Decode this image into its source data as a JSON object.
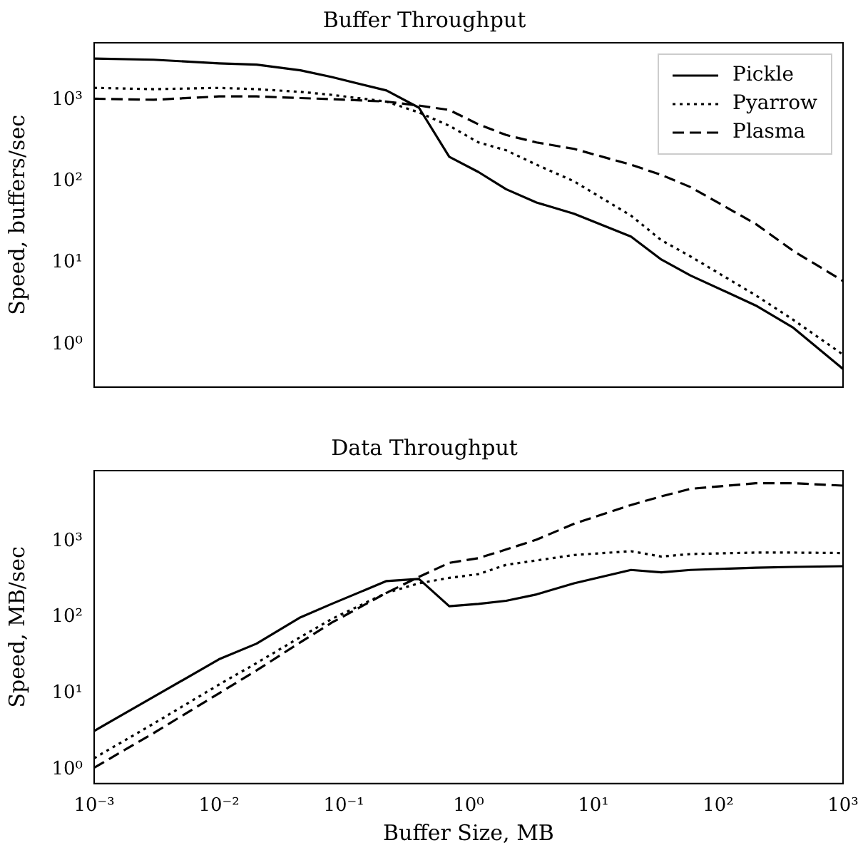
{
  "chart_data": [
    {
      "type": "line",
      "title": "Buffer Throughput",
      "ylabel": "Speed, buffers/sec",
      "log": "xy",
      "legend": "top right",
      "tick_labels": "y",
      "grid": false,
      "x": [
        0.001,
        0.003,
        0.01,
        0.02,
        0.045,
        0.08,
        0.22,
        0.4,
        0.7,
        1.2,
        2,
        3.5,
        7,
        20,
        35,
        60,
        200,
        400,
        1000
      ],
      "xlim": [
        0.001,
        1000
      ],
      "xticks": [
        {
          "value": 0.001,
          "label": null
        },
        {
          "value": 0.01,
          "label": null
        },
        {
          "value": 0.1,
          "label": null
        },
        {
          "value": 1,
          "label": null
        },
        {
          "value": 10,
          "label": null
        },
        {
          "value": 100,
          "label": null
        },
        {
          "value": 1000,
          "label": null
        }
      ],
      "ylim": [
        0.3,
        5000
      ],
      "yticks": [
        {
          "value": 1,
          "label": "10⁰"
        },
        {
          "value": 10,
          "label": "10¹"
        },
        {
          "value": 100,
          "label": "10²"
        },
        {
          "value": 1000,
          "label": "10³"
        }
      ],
      "series": [
        {
          "name": "Pickle",
          "color": "#000000",
          "line_style": "solid",
          "values": [
            3200,
            3100,
            2800,
            2700,
            2300,
            1900,
            1300,
            800,
            200,
            130,
            80,
            55,
            40,
            21,
            11,
            7,
            3,
            1.6,
            0.5
          ]
        },
        {
          "name": "Pyarrow",
          "color": "#000000",
          "line_style": "dotted",
          "values": [
            1400,
            1350,
            1400,
            1350,
            1250,
            1150,
            950,
            700,
            480,
            300,
            240,
            160,
            100,
            38,
            19,
            12,
            4,
            2,
            0.75
          ]
        },
        {
          "name": "Plasma",
          "color": "#000000",
          "line_style": "dashed",
          "values": [
            1030,
            1000,
            1100,
            1100,
            1050,
            1020,
            950,
            850,
            750,
            500,
            370,
            300,
            250,
            160,
            120,
            85,
            30,
            14,
            6
          ]
        }
      ]
    },
    {
      "type": "line",
      "title": "Data Throughput",
      "xlabel": "Buffer Size, MB",
      "ylabel": "Speed, MB/sec",
      "log": "xy",
      "grid": false,
      "x": [
        0.001,
        0.003,
        0.01,
        0.02,
        0.045,
        0.08,
        0.22,
        0.4,
        0.7,
        1.2,
        2,
        3.5,
        7,
        20,
        35,
        60,
        200,
        400,
        1000
      ],
      "xlim": [
        0.001,
        1000
      ],
      "xticks": [
        {
          "value": 0.001,
          "label": "10⁻³"
        },
        {
          "value": 0.01,
          "label": "10⁻²"
        },
        {
          "value": 0.1,
          "label": "10⁻¹"
        },
        {
          "value": 1,
          "label": "10⁰"
        },
        {
          "value": 10,
          "label": "10¹"
        },
        {
          "value": 100,
          "label": "10²"
        },
        {
          "value": 1000,
          "label": "10³"
        }
      ],
      "ylim": [
        0.65,
        8500
      ],
      "yticks": [
        {
          "value": 1,
          "label": "10⁰"
        },
        {
          "value": 10,
          "label": "10¹"
        },
        {
          "value": 100,
          "label": "10²"
        },
        {
          "value": 1000,
          "label": "10³"
        }
      ],
      "series": [
        {
          "color": "#000000",
          "line_style": "solid",
          "values": [
            3.2,
            9,
            28,
            45,
            100,
            150,
            300,
            320,
            140,
            150,
            165,
            200,
            280,
            420,
            390,
            420,
            450,
            460,
            470
          ]
        },
        {
          "color": "#000000",
          "line_style": "dotted",
          "values": [
            1.4,
            4,
            13,
            25,
            55,
            95,
            210,
            280,
            330,
            370,
            490,
            560,
            660,
            740,
            630,
            680,
            710,
            710,
            700
          ]
        },
        {
          "color": "#000000",
          "line_style": "dashed",
          "values": [
            1.05,
            3,
            10,
            20,
            47,
            85,
            210,
            340,
            520,
            600,
            780,
            1050,
            1700,
            3000,
            3900,
            4900,
            5800,
            5800,
            5400
          ]
        }
      ]
    }
  ]
}
